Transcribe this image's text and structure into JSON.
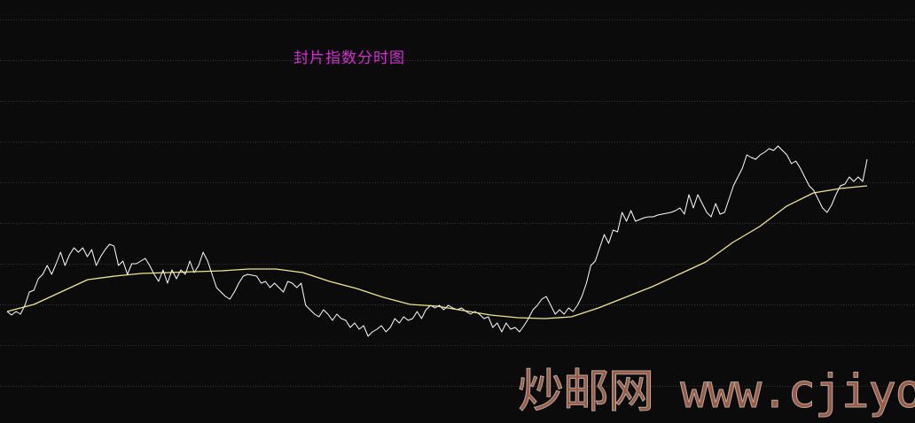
{
  "chart_data": {
    "type": "line",
    "title": "封片指数分时图",
    "xlabel": "",
    "ylabel": "",
    "grid": true,
    "ylim": [
      -42,
      436
    ],
    "gridlines": [
      0,
      46,
      92,
      138,
      184,
      230,
      276,
      322,
      368,
      414
    ],
    "series": [
      {
        "color": "#ffffff",
        "values": [
          84,
          80,
          84,
          81,
          91,
          106,
          108,
          121,
          126,
          136,
          126,
          138,
          151,
          136,
          148,
          156,
          151,
          156,
          146,
          154,
          136,
          146,
          154,
          160,
          158,
          136,
          141,
          126,
          138,
          138,
          141,
          144,
          136,
          126,
          118,
          131,
          116,
          131,
          121,
          131,
          126,
          141,
          128,
          136,
          151,
          141,
          126,
          111,
          106,
          101,
          98,
          106,
          116,
          124,
          126,
          125,
          124,
          116,
          118,
          111,
          116,
          111,
          106,
          118,
          116,
          111,
          116,
          91,
          86,
          81,
          78,
          86,
          81,
          74,
          81,
          76,
          74,
          66,
          71,
          64,
          68,
          56,
          61,
          64,
          68,
          61,
          66,
          76,
          71,
          78,
          74,
          76,
          84,
          76,
          86,
          91,
          88,
          91,
          86,
          91,
          88,
          86,
          88,
          84,
          81,
          84,
          81,
          76,
          78,
          66,
          71,
          61,
          71,
          64,
          66,
          61,
          68,
          76,
          86,
          91,
          98,
          101,
          91,
          81,
          86,
          81,
          88,
          84,
          91,
          101,
          116,
          136,
          141,
          156,
          171,
          161,
          176,
          174,
          196,
          186,
          198,
          186,
          188,
          190,
          191,
          191,
          193,
          194,
          195,
          196,
          198,
          201,
          194,
          216,
          201,
          216,
          206,
          196,
          191,
          206,
          194,
          196,
          211,
          226,
          236,
          246,
          261,
          258,
          256,
          261,
          264,
          268,
          266,
          271,
          266,
          261,
          251,
          254,
          246,
          236,
          226,
          221,
          211,
          201,
          196,
          204,
          216,
          226,
          228,
          236,
          231,
          236,
          231,
          256
        ]
      },
      {
        "color": "#f0e68c",
        "values": [
          84,
          92,
          106,
          120,
          124,
          127,
          128,
          129,
          130,
          132,
          132,
          128,
          118,
          110,
          100,
          92,
          90,
          85,
          80,
          77,
          76,
          78,
          88,
          100,
          112,
          126,
          140,
          162,
          180,
          203,
          218,
          223,
          226
        ]
      }
    ]
  },
  "watermark": "炒邮网 www.cjiyou.net"
}
